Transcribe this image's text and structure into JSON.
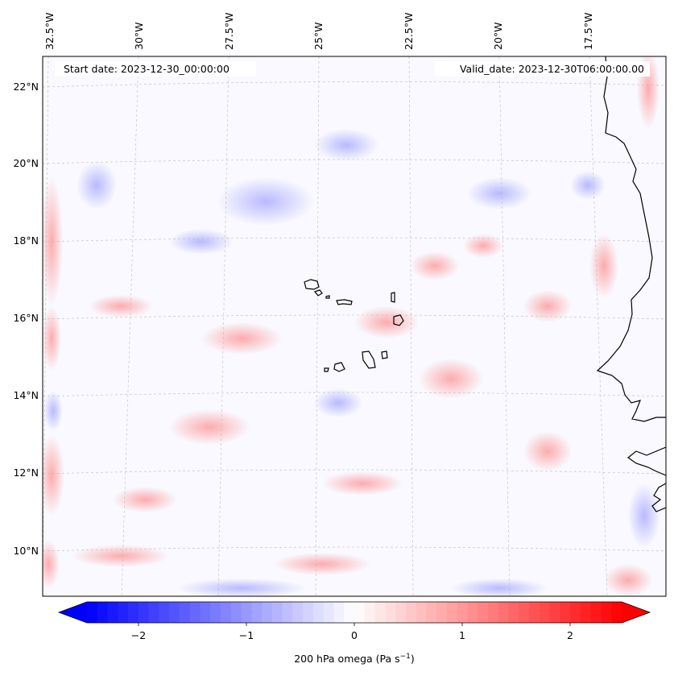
{
  "header": {
    "start_date": "Start date: 2023-12-30_00:00:00",
    "valid_date": "Valid_date: 2023-12-30T06:00:00.00"
  },
  "longitude_labels": [
    "32.5°W",
    "30°W",
    "27.5°W",
    "25°W",
    "22.5°W",
    "20°W",
    "17.5°W"
  ],
  "latitude_labels": [
    "22°N",
    "20°N",
    "18°N",
    "16°N",
    "14°N",
    "12°N",
    "10°N"
  ],
  "colorbar": {
    "ticks": [
      "−2",
      "−1",
      "0",
      "1",
      "2"
    ],
    "min": -2.6,
    "max": 2.6,
    "colormap": "bwr",
    "extend": "both",
    "label_main": "200 hPa omega (Pa s",
    "label_sup": "−1",
    "label_end": ")"
  },
  "colors": {
    "negative": "#0000ff",
    "neutral": "#ffffff",
    "positive": "#ff0000",
    "coastline": "#000000",
    "gridline": "#bbbbbb"
  }
}
